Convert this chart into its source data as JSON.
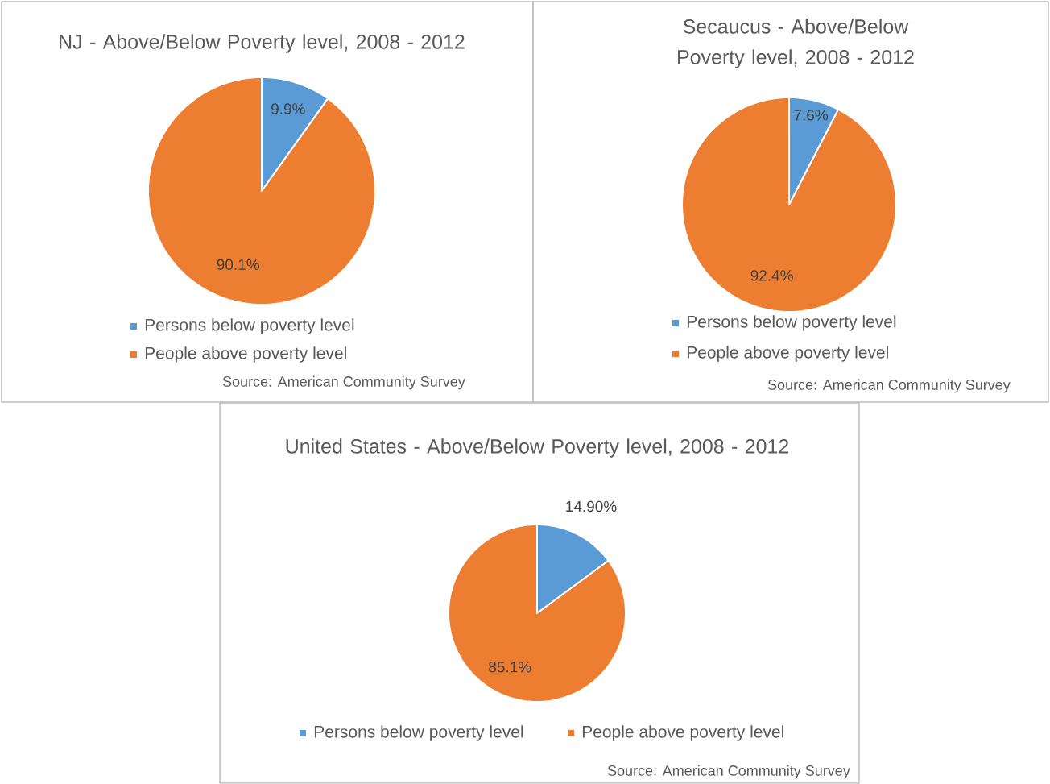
{
  "chart_data": [
    {
      "type": "pie",
      "title": "NJ - Above/Below Poverty level, 2008 - 2012",
      "categories": [
        "Persons below poverty level",
        "People above poverty level"
      ],
      "values": [
        9.9,
        90.1
      ],
      "colors": [
        "#5b9bd5",
        "#ed7d31"
      ],
      "value_labels": [
        "9.9%",
        "90.1%"
      ],
      "legend": "bottom",
      "annotations": [
        "Source: American Community Survey"
      ]
    },
    {
      "type": "pie",
      "title": "Secaucus - Above/Below Poverty level, 2008 - 2012",
      "categories": [
        "Persons below poverty level",
        "People above poverty level"
      ],
      "values": [
        7.6,
        92.4
      ],
      "colors": [
        "#5b9bd5",
        "#ed7d31"
      ],
      "value_labels": [
        "7.6%",
        "92.4%"
      ],
      "legend": "bottom",
      "annotations": [
        "Source: American Community Survey"
      ]
    },
    {
      "type": "pie",
      "title": "United States - Above/Below Poverty level, 2008 - 2012",
      "categories": [
        "Persons below poverty level",
        "People above poverty level"
      ],
      "values": [
        14.9,
        85.1
      ],
      "colors": [
        "#5b9bd5",
        "#ed7d31"
      ],
      "value_labels": [
        "14.90%",
        "85.1%"
      ],
      "legend": "bottom",
      "annotations": [
        "Source: American Community Survey"
      ]
    }
  ]
}
